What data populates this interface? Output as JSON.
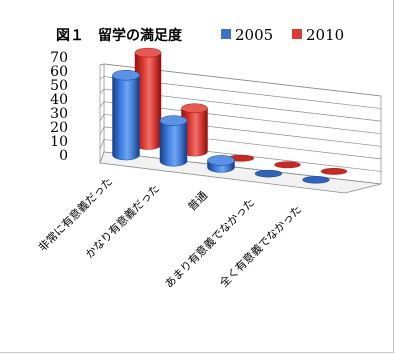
{
  "chart_data": {
    "type": "bar",
    "title": "図１　留学の満足度",
    "categories": [
      "非常に有意義だった",
      "かなり有意義だった",
      "普通",
      "あまり有意義でなかった",
      "全く有意義でなかった"
    ],
    "series": [
      {
        "name": "2005",
        "values": [
          57,
          29,
          5,
          0,
          0
        ],
        "color": "#3d74c9"
      },
      {
        "name": "2010",
        "values": [
          66,
          31,
          0,
          0,
          0
        ],
        "color": "#d83a34"
      }
    ],
    "ylim": [
      0,
      70
    ],
    "yticks": [
      "0",
      "10",
      "20",
      "30",
      "40",
      "50",
      "60",
      "70"
    ],
    "grid": true,
    "legend": "top-right",
    "three_d": true
  }
}
